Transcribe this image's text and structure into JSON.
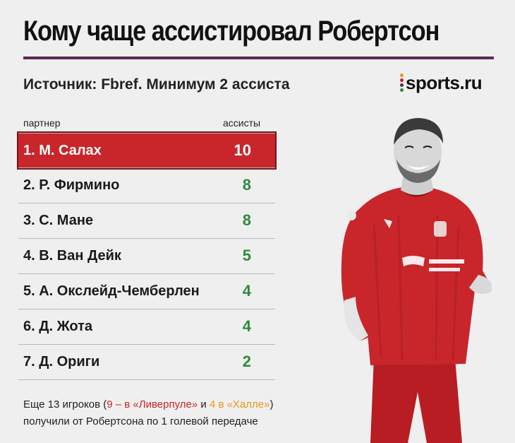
{
  "title": "Кому чаще ассистировал Робертсон",
  "subtitle": "Источник: Fbref. Минимум 2 ассиста",
  "logo": {
    "text": "sports.ru",
    "dot_colors": [
      "#e8951a",
      "#c8262b",
      "#5c2a54",
      "#2e8b3d"
    ]
  },
  "columns": {
    "partner": "партнер",
    "assists": "ассисты"
  },
  "rows": [
    {
      "name": "1. М. Салах",
      "value": "10",
      "highlight": true
    },
    {
      "name": "2. Р. Фирмино",
      "value": "8"
    },
    {
      "name": "3. С. Мане",
      "value": "8"
    },
    {
      "name": "4. В. Ван Дейк",
      "value": "5"
    },
    {
      "name": "5. А. Окслейд-Чемберлен",
      "value": "4"
    },
    {
      "name": "6. Д. Жота",
      "value": "4"
    },
    {
      "name": "7. Д. Ориги",
      "value": "2"
    }
  ],
  "footnote": {
    "part1": "Еще 13 игроков (",
    "liverpool": "9 – в «Ливерпуле»",
    "and": " и ",
    "hull": "4 в «Халле»",
    "close": ")",
    "line2": "получили от Робертсона по 1 голевой передаче"
  },
  "colors": {
    "accent_purple": "#5c2a54",
    "highlight_red": "#c8262b",
    "value_green": "#2e8b3d",
    "hull_orange": "#e8951a"
  }
}
